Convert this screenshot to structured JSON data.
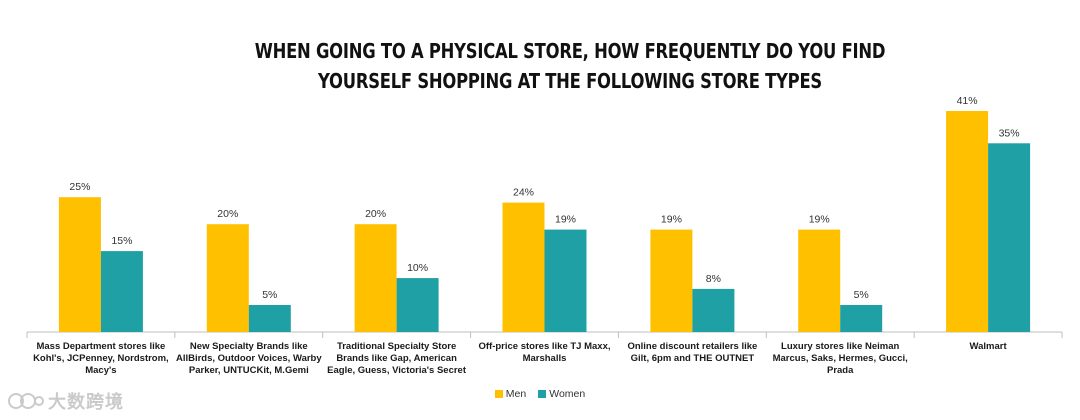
{
  "chart_data": {
    "type": "bar",
    "title": "WHEN GOING TO A PHYSICAL STORE, HOW FREQUENTLY DO YOU FIND YOURSELF SHOPPING AT THE FOLLOWING STORE TYPES",
    "categories": [
      "Mass Department stores like Kohl's, JCPenney, Nordstrom, Macy's",
      "New Specialty Brands like AllBirds, Outdoor Voices, Warby Parker, UNTUCKit, M.Gemi",
      "Traditional Specialty Store Brands like Gap, American Eagle, Guess, Victoria's Secret",
      "Off-price stores like TJ Maxx, Marshalls",
      "Online discount retailers like Gilt, 6pm and THE OUTNET",
      "Luxury stores like Neiman Marcus, Saks, Hermes, Gucci, Prada",
      "Walmart"
    ],
    "series": [
      {
        "name": "Men",
        "color": "#FFC000",
        "values": [
          25,
          20,
          20,
          24,
          19,
          19,
          41
        ],
        "labels": [
          "25%",
          "20%",
          "20%",
          "24%",
          "19%",
          "19%",
          "41%"
        ]
      },
      {
        "name": "Women",
        "color": "#1FA0A4",
        "values": [
          15,
          5,
          10,
          19,
          8,
          5,
          35
        ],
        "labels": [
          "15%",
          "5%",
          "10%",
          "19%",
          "8%",
          "5%",
          "35%"
        ]
      }
    ],
    "ylim": [
      0,
      41
    ],
    "grid": false,
    "legend_position": "bottom"
  },
  "watermark": {
    "text": "大数跨境"
  }
}
